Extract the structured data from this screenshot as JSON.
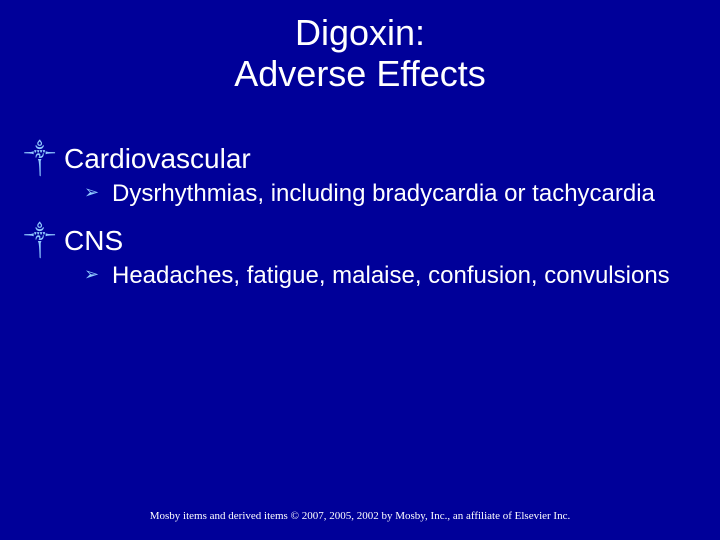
{
  "slide": {
    "background_color": "#000099",
    "text_color": "#ffffff",
    "bullet_color": "#8fc8ff",
    "title_fontsize": 36,
    "l1_fontsize": 28,
    "l2_fontsize": 24,
    "footer_fontsize": 11,
    "title_line1": "Digoxin:",
    "title_line2": "Adverse Effects",
    "items": [
      {
        "label": "Cardiovascular",
        "sub": "Dysrhythmias, including bradycardia or tachycardia"
      },
      {
        "label": "CNS",
        "sub": "Headaches, fatigue, malaise, confusion, convulsions"
      }
    ],
    "l1_bullet_glyph": "༒",
    "l2_bullet_glyph": "➢",
    "footer": "Mosby items and derived items © 2007, 2005, 2002 by Mosby, Inc., an affiliate of Elsevier Inc."
  }
}
